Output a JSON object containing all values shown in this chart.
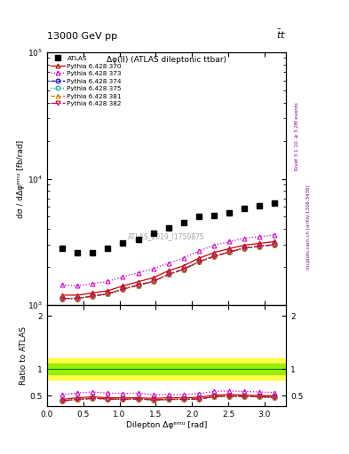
{
  "title_top": "13000 GeV pp",
  "title_top_right": "tt",
  "plot_title": "Δφ(ll) (ATLAS dileptonic ttbar)",
  "xlabel": "Dilepton Δφᵉᵐᵘ [rad]",
  "ylabel_main": "dσ / dΔφᵉᵐᵘ [fb/rad]",
  "ylabel_ratio": "Ratio to ATLAS",
  "watermark": "ATLAS_2019_I1759875",
  "right_label_top": "Rivet 3.1.10, ≥ 3.2M events",
  "right_label_bottom": "mcplots.cern.ch [arXiv:1306.3436]",
  "x_data": [
    0.2094,
    0.4189,
    0.6283,
    0.8378,
    1.0472,
    1.2566,
    1.4661,
    1.6755,
    1.885,
    2.0944,
    2.3038,
    2.5133,
    2.7227,
    2.9322,
    3.1416
  ],
  "atlas_y": [
    2800,
    2600,
    2600,
    2800,
    3100,
    3300,
    3700,
    4100,
    4500,
    5000,
    5100,
    5400,
    5800,
    6100,
    6400
  ],
  "py370_y": [
    1200,
    1200,
    1250,
    1300,
    1420,
    1530,
    1650,
    1870,
    2050,
    2350,
    2600,
    2800,
    2980,
    3080,
    3180
  ],
  "py373_y": [
    1450,
    1420,
    1480,
    1540,
    1680,
    1800,
    1940,
    2150,
    2360,
    2680,
    2980,
    3180,
    3380,
    3480,
    3600
  ],
  "py374_y": [
    1130,
    1130,
    1180,
    1230,
    1340,
    1440,
    1540,
    1750,
    1920,
    2200,
    2430,
    2630,
    2830,
    2920,
    3010
  ],
  "py375_y": [
    1130,
    1130,
    1180,
    1230,
    1340,
    1440,
    1540,
    1750,
    1920,
    2200,
    2430,
    2630,
    2830,
    2920,
    3010
  ],
  "py381_y": [
    1130,
    1130,
    1180,
    1230,
    1340,
    1440,
    1540,
    1750,
    1920,
    2200,
    2430,
    2630,
    2830,
    2920,
    3010
  ],
  "py382_y": [
    1130,
    1130,
    1180,
    1230,
    1340,
    1440,
    1540,
    1750,
    1920,
    2200,
    2430,
    2630,
    2830,
    2920,
    3010
  ],
  "ratio370": [
    0.43,
    0.46,
    0.48,
    0.46,
    0.46,
    0.46,
    0.45,
    0.46,
    0.46,
    0.47,
    0.51,
    0.52,
    0.51,
    0.5,
    0.5
  ],
  "ratio373": [
    0.52,
    0.55,
    0.57,
    0.55,
    0.54,
    0.55,
    0.52,
    0.52,
    0.52,
    0.54,
    0.58,
    0.59,
    0.58,
    0.57,
    0.56
  ],
  "ratio374": [
    0.4,
    0.43,
    0.45,
    0.44,
    0.43,
    0.44,
    0.42,
    0.43,
    0.43,
    0.44,
    0.48,
    0.49,
    0.49,
    0.48,
    0.47
  ],
  "ratio375": [
    0.4,
    0.43,
    0.45,
    0.44,
    0.43,
    0.44,
    0.42,
    0.43,
    0.43,
    0.44,
    0.48,
    0.49,
    0.49,
    0.48,
    0.47
  ],
  "ratio381": [
    0.4,
    0.43,
    0.45,
    0.44,
    0.43,
    0.44,
    0.42,
    0.43,
    0.43,
    0.44,
    0.48,
    0.49,
    0.49,
    0.48,
    0.47
  ],
  "ratio382": [
    0.4,
    0.43,
    0.45,
    0.44,
    0.43,
    0.44,
    0.42,
    0.43,
    0.43,
    0.44,
    0.48,
    0.49,
    0.49,
    0.48,
    0.47
  ],
  "xlim": [
    0.0,
    3.3
  ],
  "ylim_main": [
    1000,
    100000
  ],
  "ylim_ratio": [
    0.3,
    2.2
  ],
  "green_band": [
    0.9,
    1.1
  ],
  "yellow_band": [
    0.8,
    1.2
  ],
  "colors": {
    "atlas": "#000000",
    "py370": "#cc0000",
    "py373": "#cc00cc",
    "py374": "#0000cc",
    "py375": "#00aaaa",
    "py381": "#cc8800",
    "py382": "#cc0044"
  }
}
